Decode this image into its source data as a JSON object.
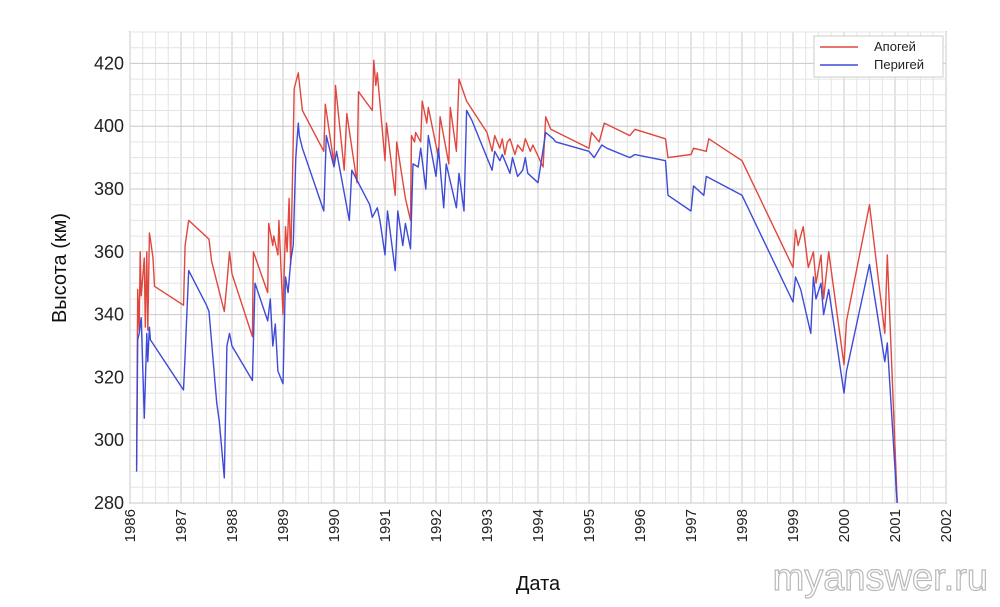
{
  "chart_data": {
    "type": "line",
    "title": "",
    "xlabel": "Дата",
    "ylabel": "Высота (км)",
    "xlim": [
      1986,
      2002
    ],
    "ylim": [
      280,
      430
    ],
    "grid": true,
    "legend_position": "top-right",
    "x_ticks": [
      "1986",
      "1987",
      "1988",
      "1989",
      "1990",
      "1991",
      "1992",
      "1993",
      "1994",
      "1995",
      "1996",
      "1997",
      "1998",
      "1999",
      "2000",
      "2001",
      "2002"
    ],
    "y_ticks": [
      "280",
      "300",
      "320",
      "340",
      "360",
      "380",
      "400",
      "420"
    ],
    "series": [
      {
        "name": "Апогей",
        "color": "#e0473f",
        "x": [
          1986.13,
          1986.15,
          1986.18,
          1986.2,
          1986.22,
          1986.28,
          1986.3,
          1986.33,
          1986.35,
          1986.38,
          1986.4,
          1986.45,
          1986.48,
          1987.05,
          1987.08,
          1987.15,
          1987.55,
          1987.6,
          1987.85,
          1987.9,
          1987.95,
          1988.0,
          1988.4,
          1988.42,
          1988.7,
          1988.72,
          1988.8,
          1988.82,
          1988.9,
          1988.92,
          1989.0,
          1989.05,
          1989.08,
          1989.12,
          1989.15,
          1989.2,
          1989.22,
          1989.3,
          1989.32,
          1989.38,
          1989.8,
          1989.83,
          1990.0,
          1990.03,
          1990.2,
          1990.25,
          1990.45,
          1990.48,
          1990.75,
          1990.78,
          1990.82,
          1990.85,
          1991.0,
          1991.03,
          1991.2,
          1991.23,
          1991.4,
          1991.5,
          1991.52,
          1991.58,
          1991.6,
          1991.7,
          1991.73,
          1991.82,
          1991.85,
          1992.05,
          1992.08,
          1992.25,
          1992.28,
          1992.4,
          1992.45,
          1992.6,
          1993.0,
          1993.1,
          1993.15,
          1993.25,
          1993.3,
          1993.35,
          1993.4,
          1993.45,
          1993.55,
          1993.6,
          1993.7,
          1993.75,
          1993.85,
          1993.9,
          1994.1,
          1994.15,
          1994.25,
          1995.0,
          1995.05,
          1995.2,
          1995.3,
          1995.8,
          1995.9,
          1996.5,
          1996.55,
          1997.0,
          1997.05,
          1997.3,
          1997.35,
          1998.0,
          1999.0,
          1999.05,
          1999.1,
          1999.2,
          1999.3,
          1999.4,
          1999.45,
          1999.55,
          1999.6,
          1999.7,
          2000.0,
          2000.05,
          2000.5,
          2000.8,
          2000.85,
          2001.05
        ],
        "values": [
          292,
          348,
          335,
          360,
          346,
          358,
          336,
          360,
          335,
          366,
          364,
          358,
          349,
          343,
          362,
          370,
          364,
          357,
          341,
          350,
          360,
          353,
          333,
          360,
          347,
          369,
          362,
          365,
          359,
          370,
          340,
          368,
          360,
          377,
          356,
          395,
          412,
          417,
          414,
          405,
          392,
          407,
          388,
          413,
          386,
          404,
          382,
          411,
          405,
          421,
          413,
          417,
          389,
          401,
          378,
          395,
          377,
          370,
          397,
          395,
          398,
          395,
          408,
          401,
          406,
          390,
          403,
          388,
          406,
          392,
          415,
          408,
          398,
          392,
          397,
          393,
          396,
          391,
          395,
          396,
          391,
          394,
          392,
          396,
          392,
          394,
          387,
          403,
          399,
          393,
          398,
          395,
          401,
          397,
          399,
          396,
          390,
          391,
          393,
          392,
          396,
          389,
          355,
          367,
          362,
          368,
          355,
          360,
          350,
          359,
          345,
          360,
          324,
          338,
          375,
          334,
          359,
          278
        ]
      },
      {
        "name": "Перигей",
        "color": "#3d4bd6",
        "x": [
          1986.13,
          1986.15,
          1986.18,
          1986.22,
          1986.28,
          1986.33,
          1986.35,
          1986.38,
          1986.4,
          1987.05,
          1987.08,
          1987.15,
          1987.5,
          1987.55,
          1987.7,
          1987.75,
          1987.85,
          1987.9,
          1987.95,
          1988.0,
          1988.4,
          1988.45,
          1988.7,
          1988.75,
          1988.8,
          1988.85,
          1988.9,
          1989.0,
          1989.05,
          1989.1,
          1989.15,
          1989.2,
          1989.25,
          1989.3,
          1989.32,
          1989.38,
          1989.8,
          1989.85,
          1990.0,
          1990.05,
          1990.3,
          1990.35,
          1990.7,
          1990.75,
          1990.85,
          1990.9,
          1991.0,
          1991.05,
          1991.2,
          1991.25,
          1991.35,
          1991.4,
          1991.5,
          1991.55,
          1991.65,
          1991.7,
          1991.8,
          1991.85,
          1992.0,
          1992.05,
          1992.15,
          1992.2,
          1992.4,
          1992.45,
          1992.55,
          1992.6,
          1992.7,
          1993.0,
          1993.1,
          1993.15,
          1993.25,
          1993.3,
          1993.45,
          1993.5,
          1993.6,
          1993.7,
          1993.75,
          1993.8,
          1994.0,
          1994.15,
          1994.3,
          1994.35,
          1995.0,
          1995.1,
          1995.25,
          1995.35,
          1995.8,
          1995.9,
          1996.5,
          1996.55,
          1997.0,
          1997.05,
          1997.25,
          1997.3,
          1998.0,
          1999.0,
          1999.05,
          1999.15,
          1999.35,
          1999.4,
          1999.45,
          1999.55,
          1999.6,
          1999.7,
          2000.0,
          2000.05,
          2000.5,
          2000.8,
          2000.85,
          2001.05
        ],
        "values": [
          290,
          332,
          334,
          339,
          307,
          334,
          325,
          336,
          332,
          316,
          327,
          354,
          343,
          341,
          312,
          306,
          288,
          330,
          334,
          330,
          319,
          350,
          338,
          345,
          330,
          337,
          322,
          318,
          352,
          347,
          357,
          362,
          390,
          401,
          397,
          393,
          373,
          397,
          387,
          392,
          370,
          386,
          375,
          371,
          374,
          370,
          359,
          373,
          354,
          373,
          362,
          369,
          361,
          388,
          387,
          393,
          380,
          397,
          384,
          393,
          374,
          388,
          374,
          385,
          373,
          405,
          402,
          390,
          386,
          392,
          389,
          391,
          385,
          390,
          384,
          386,
          390,
          385,
          382,
          398,
          396,
          395,
          392,
          390,
          394,
          393,
          390,
          391,
          389,
          378,
          373,
          381,
          378,
          384,
          378,
          344,
          352,
          348,
          334,
          352,
          345,
          350,
          340,
          348,
          315,
          322,
          356,
          325,
          331,
          278
        ]
      }
    ]
  },
  "watermark": "myanswer.ru"
}
